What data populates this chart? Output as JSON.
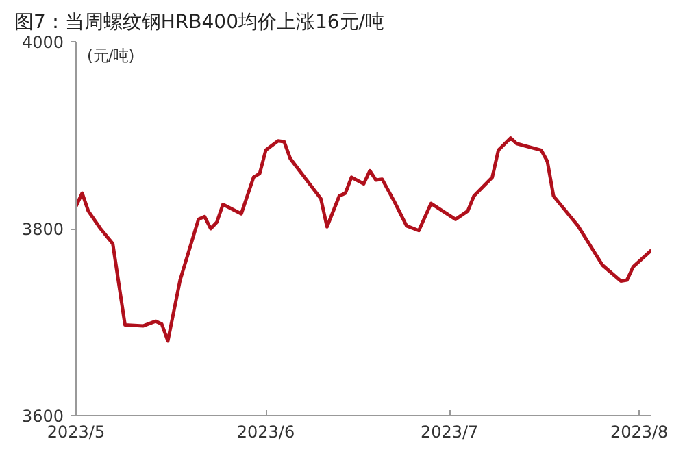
{
  "chart_data": {
    "type": "line",
    "title": "图7：当周螺纹钢HRB400均价上涨16元/吨",
    "ylabel": "(元/吨)",
    "x": [
      "2023-05-01",
      "2023-05-02",
      "2023-05-03",
      "2023-05-05",
      "2023-05-07",
      "2023-05-09",
      "2023-05-12",
      "2023-05-14",
      "2023-05-15",
      "2023-05-16",
      "2023-05-18",
      "2023-05-21",
      "2023-05-22",
      "2023-05-23",
      "2023-05-24",
      "2023-05-25",
      "2023-05-28",
      "2023-05-30",
      "2023-05-31",
      "2023-06-01",
      "2023-06-03",
      "2023-06-04",
      "2023-06-05",
      "2023-06-10",
      "2023-06-11",
      "2023-06-13",
      "2023-06-14",
      "2023-06-15",
      "2023-06-17",
      "2023-06-18",
      "2023-06-19",
      "2023-06-20",
      "2023-06-22",
      "2023-06-24",
      "2023-06-26",
      "2023-06-28",
      "2023-07-02",
      "2023-07-04",
      "2023-07-05",
      "2023-07-08",
      "2023-07-09",
      "2023-07-11",
      "2023-07-12",
      "2023-07-16",
      "2023-07-17",
      "2023-07-18",
      "2023-07-22",
      "2023-07-26",
      "2023-07-29",
      "2023-07-30",
      "2023-07-31",
      "2023-08-03"
    ],
    "series": [
      {
        "color": "#b0101c",
        "values": [
          3824,
          3838,
          3819,
          3800,
          3784,
          3697,
          3696,
          3701,
          3698,
          3680,
          3745,
          3810,
          3813,
          3800,
          3807,
          3826,
          3816,
          3855,
          3859,
          3884,
          3894,
          3893,
          3875,
          3832,
          3802,
          3835,
          3838,
          3855,
          3848,
          3862,
          3852,
          3853,
          3829,
          3803,
          3798,
          3827,
          3810,
          3819,
          3835,
          3855,
          3884,
          3897,
          3891,
          3884,
          3872,
          3835,
          3803,
          3761,
          3744,
          3745,
          3759,
          3777
        ]
      }
    ],
    "xlim": [
      "2023-05-01",
      "2023-08-03"
    ],
    "xticks": [
      {
        "value": "2023-05-01",
        "label": "2023/5"
      },
      {
        "value": "2023-06-01",
        "label": "2023/6"
      },
      {
        "value": "2023-07-01",
        "label": "2023/7"
      },
      {
        "value": "2023-08-01",
        "label": "2023/8"
      }
    ],
    "ylim": [
      3600,
      4000
    ],
    "yticks": [
      3600,
      3800,
      4000
    ],
    "grid": false,
    "line_style": "solid",
    "marker": "none"
  }
}
